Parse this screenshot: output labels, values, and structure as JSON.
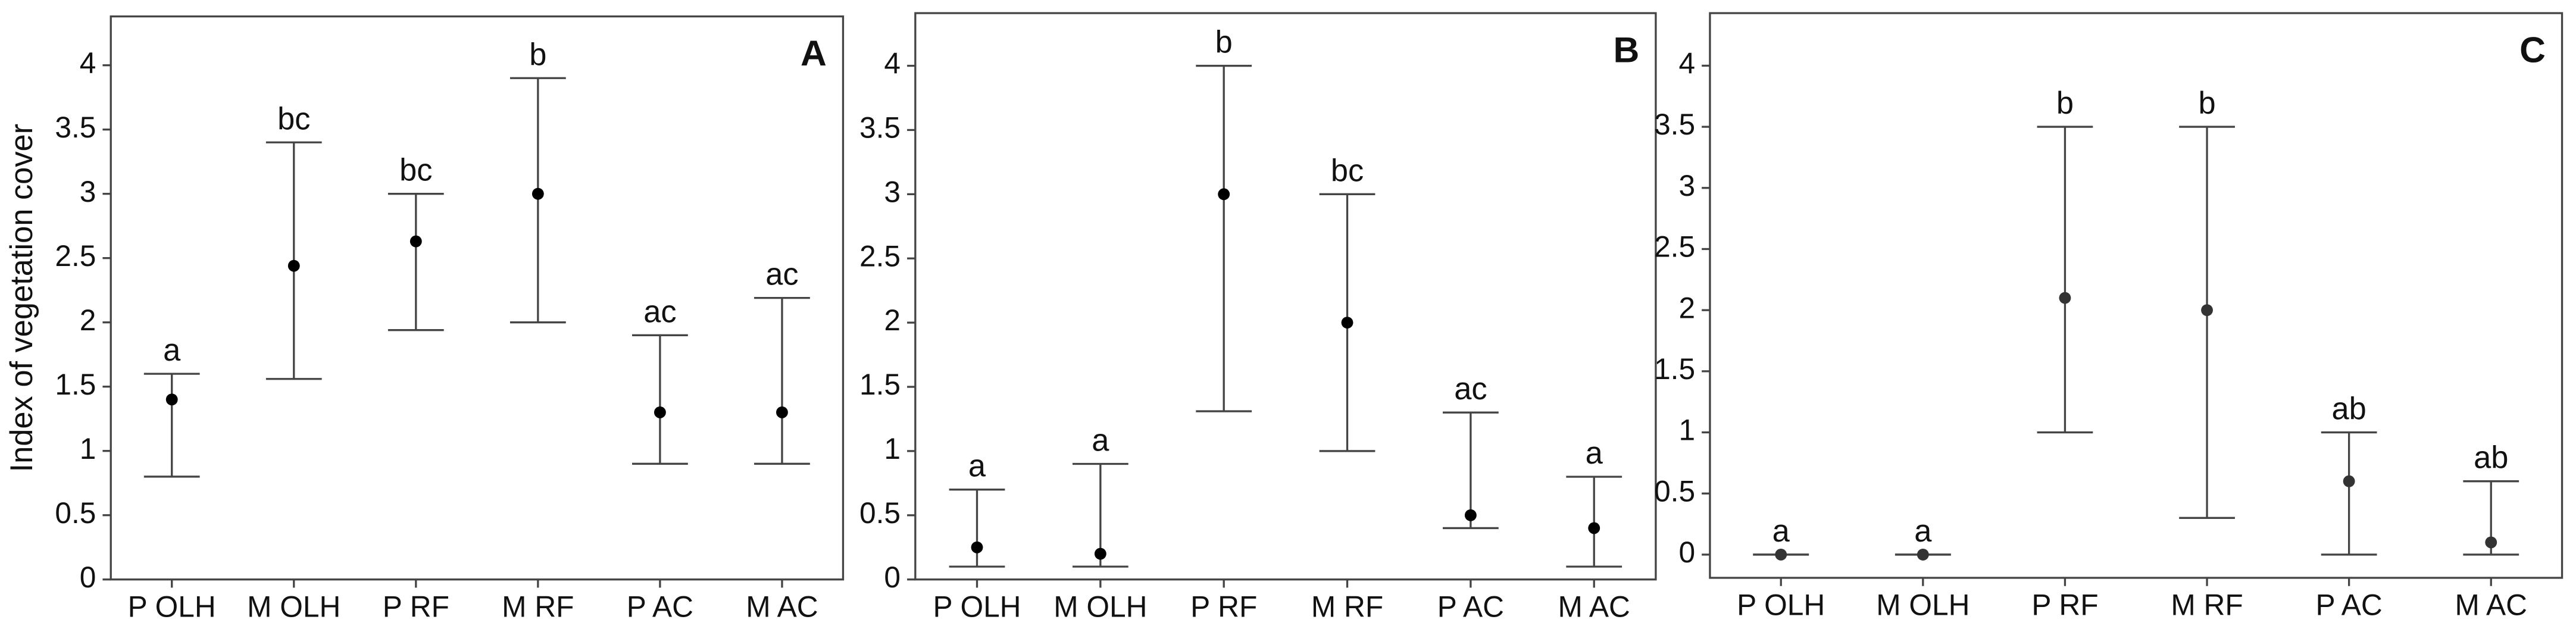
{
  "chart_data": [
    {
      "type": "errorbar",
      "title": "A",
      "ylabel": "Index of vegetation cover",
      "categories": [
        "P OLH",
        "M OLH",
        "P RF",
        "M RF",
        "P AC",
        "M AC"
      ],
      "values": [
        1.4,
        2.44,
        2.63,
        3.0,
        1.3,
        1.3
      ],
      "lower": [
        0.8,
        1.56,
        1.94,
        2.0,
        0.9,
        0.9
      ],
      "upper": [
        1.6,
        3.4,
        3.0,
        3.9,
        1.9,
        2.19
      ],
      "annotations": [
        "a",
        "bc",
        "bc",
        "b",
        "ac",
        "ac"
      ],
      "color": "#000000",
      "ylim": [
        0,
        4.38
      ],
      "yticks": [
        0,
        0.5,
        1,
        1.5,
        2,
        2.5,
        3,
        3.5,
        4
      ]
    },
    {
      "type": "errorbar",
      "title": "B",
      "categories": [
        "P OLH",
        "M OLH",
        "P RF",
        "M RF",
        "P AC",
        "M AC"
      ],
      "values": [
        0.25,
        0.2,
        3.0,
        2.0,
        0.5,
        0.4
      ],
      "lower": [
        0.1,
        0.1,
        1.31,
        1.0,
        0.4,
        0.1
      ],
      "upper": [
        0.7,
        0.9,
        4.0,
        3.0,
        1.3,
        0.8
      ],
      "annotations": [
        "a",
        "a",
        "b",
        "bc",
        "ac",
        "a"
      ],
      "color": "#000000",
      "ylim": [
        0,
        4.41
      ],
      "yticks": [
        0,
        0.5,
        1,
        1.5,
        2,
        2.5,
        3,
        3.5,
        4
      ]
    },
    {
      "type": "errorbar",
      "title": "C",
      "categories": [
        "P OLH",
        "M OLH",
        "P RF",
        "M RF",
        "P AC",
        "M AC"
      ],
      "values": [
        0,
        0,
        2.1,
        2.0,
        0.6,
        0.1
      ],
      "lower": [
        0,
        0,
        1.0,
        0.3,
        0,
        0
      ],
      "upper": [
        0,
        0,
        3.5,
        3.5,
        1.0,
        0.6
      ],
      "annotations": [
        "a",
        "a",
        "b",
        "b",
        "ab",
        "ab"
      ],
      "color": "#333333",
      "ylim": [
        -0.19,
        4.43
      ],
      "yticks": [
        0,
        0.5,
        1,
        1.5,
        2,
        2.5,
        3,
        3.5,
        4
      ]
    }
  ]
}
